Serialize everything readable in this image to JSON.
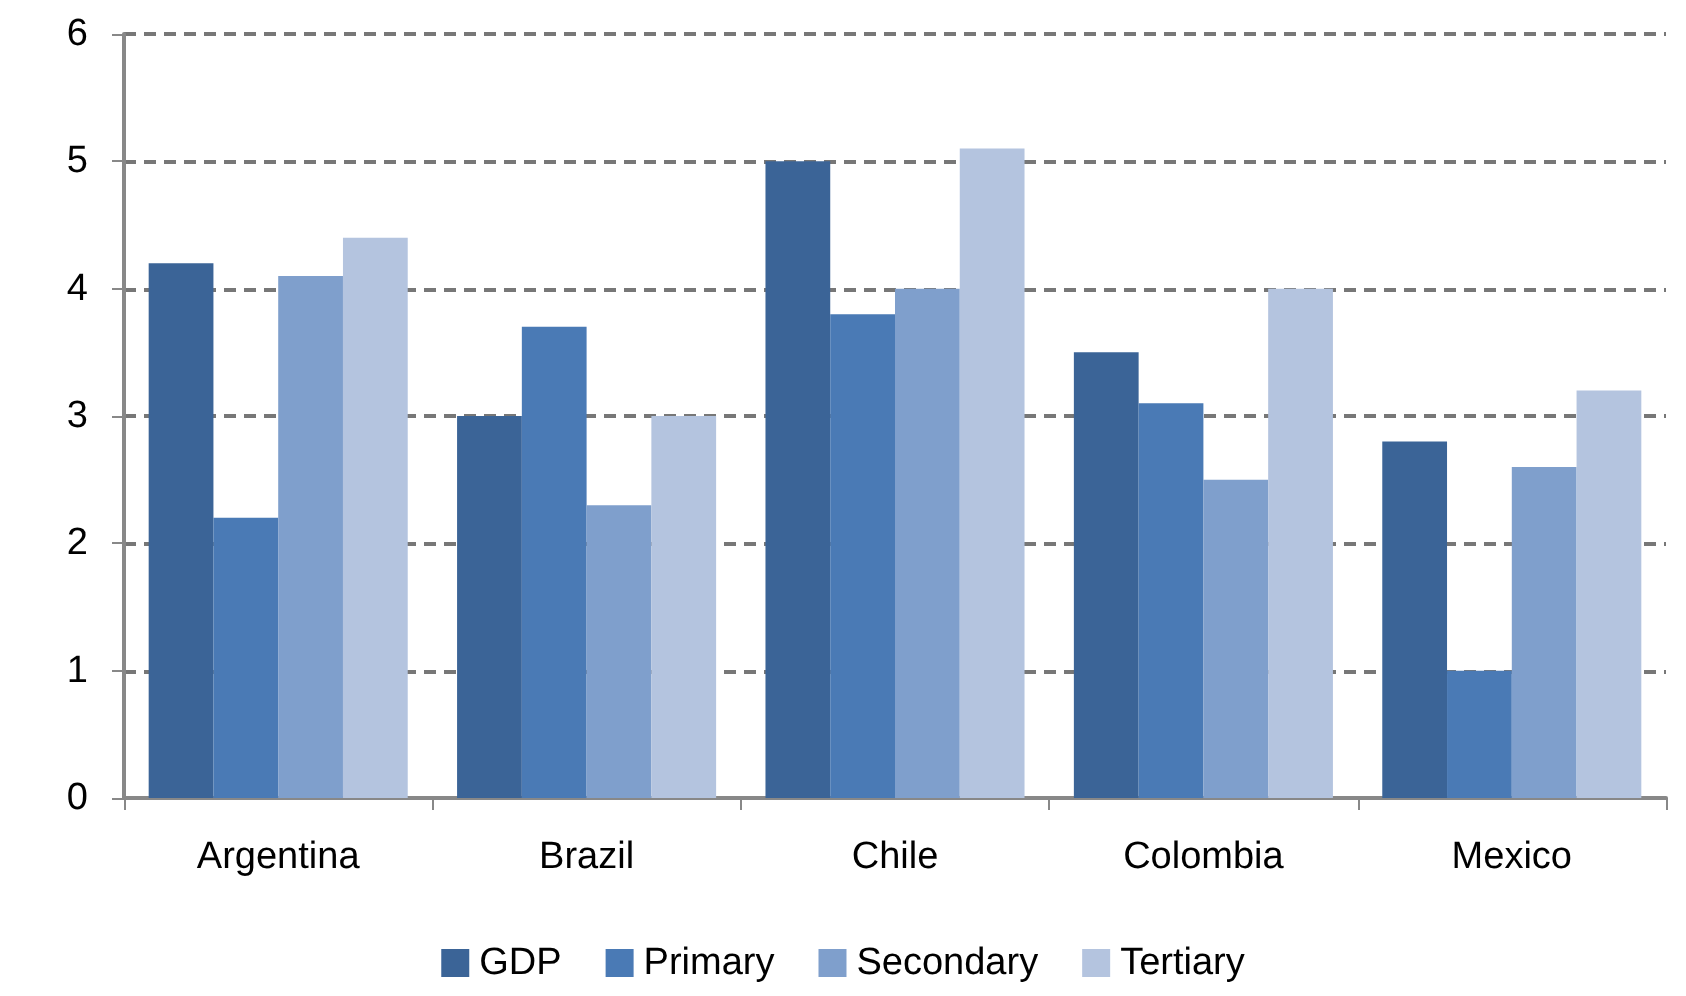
{
  "chart_data": {
    "type": "bar",
    "categories": [
      "Argentina",
      "Brazil",
      "Chile",
      "Colombia",
      "Mexico"
    ],
    "series": [
      {
        "name": "GDP",
        "color": "#3b6497",
        "values": [
          4.2,
          3.0,
          5.0,
          3.5,
          2.8
        ]
      },
      {
        "name": "Primary",
        "color": "#4a7ab5",
        "values": [
          2.2,
          3.7,
          3.8,
          3.1,
          1.0
        ]
      },
      {
        "name": "Secondary",
        "color": "#7f9fcc",
        "values": [
          4.1,
          2.3,
          4.0,
          2.5,
          2.6
        ]
      },
      {
        "name": "Tertiary",
        "color": "#b4c4df",
        "values": [
          4.4,
          3.0,
          5.1,
          4.0,
          3.2
        ]
      }
    ],
    "ylim": [
      0,
      6
    ],
    "yticks": [
      0,
      1,
      2,
      3,
      4,
      5,
      6
    ],
    "grid": "y",
    "legend": "bottom"
  }
}
